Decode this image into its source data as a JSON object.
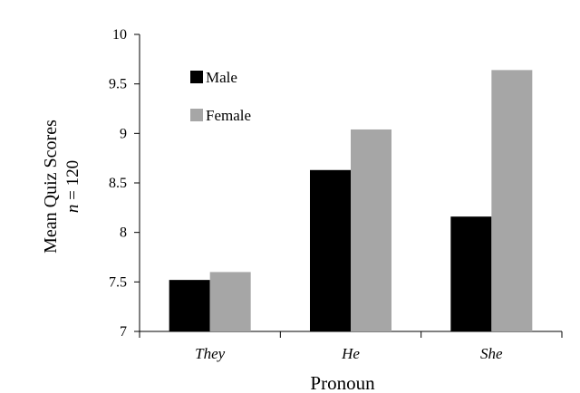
{
  "chart_data": {
    "type": "bar",
    "categories": [
      "They",
      "He",
      "She"
    ],
    "series": [
      {
        "name": "Male",
        "values": [
          7.52,
          8.63,
          8.16
        ],
        "color": "#000000"
      },
      {
        "name": "Female",
        "values": [
          7.6,
          9.04,
          9.64
        ],
        "color": "#a6a6a6"
      }
    ],
    "xlabel": "Pronoun",
    "ylabel": "Mean Quiz Scores",
    "ylabel_n_var": "n",
    "ylabel_n_value": " = 120",
    "ylim": [
      7,
      10
    ],
    "yticks": [
      "7",
      "7.5",
      "8",
      "8.5",
      "9",
      "9.5",
      "10"
    ],
    "grid": false,
    "legend_position": "top-left"
  }
}
